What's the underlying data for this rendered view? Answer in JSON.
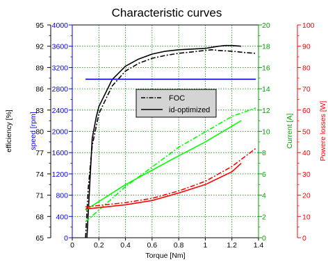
{
  "chart_data": {
    "type": "line",
    "title": "Characteristic curves",
    "xlabel": "Torque [Nm]",
    "xlim": [
      0,
      1.4
    ],
    "x_ticks": [
      "0",
      "0.2",
      "0.4",
      "0.6",
      "0.8",
      "1",
      "1.2",
      "1.4"
    ],
    "grid": true,
    "legend": {
      "position": "center",
      "entries": [
        "FOC",
        "id-optimized"
      ]
    },
    "axes": [
      {
        "id": "efficiency",
        "label": "efficiency [%]",
        "side": "left-outer",
        "range": [
          65,
          95
        ],
        "ticks": [
          "65",
          "68",
          "71",
          "74",
          "77",
          "80",
          "83",
          "86",
          "89",
          "92",
          "95"
        ],
        "color": "#000000"
      },
      {
        "id": "speed",
        "label": "speed [rpm]",
        "side": "left-inner",
        "range": [
          0,
          4000
        ],
        "ticks": [
          "0",
          "400",
          "800",
          "1200",
          "1600",
          "2000",
          "2400",
          "2800",
          "3200",
          "3600",
          "4000"
        ],
        "color": "#0000ff"
      },
      {
        "id": "current",
        "label": "Current [A]",
        "side": "right-inner",
        "range": [
          0,
          20
        ],
        "ticks": [
          "0",
          "2",
          "4",
          "6",
          "8",
          "10",
          "12",
          "14",
          "16",
          "18",
          "20"
        ],
        "color": "#00a000"
      },
      {
        "id": "losses",
        "label": "Powere losses [W]",
        "side": "right-outer",
        "range": [
          0,
          100
        ],
        "ticks": [
          "0",
          "10",
          "20",
          "30",
          "40",
          "50",
          "60",
          "70",
          "80",
          "90",
          "100"
        ],
        "color": "#ff0000"
      }
    ],
    "series": [
      {
        "name": "FOC",
        "axis": "efficiency",
        "style": "dashdot",
        "color": "#000000",
        "x": [
          0.1,
          0.12,
          0.15,
          0.2,
          0.3,
          0.4,
          0.5,
          0.6,
          0.7,
          0.8,
          0.9,
          1.0,
          1.05,
          1.1,
          1.2,
          1.3,
          1.38
        ],
        "y": [
          65,
          72,
          78,
          82.5,
          86.4,
          88.5,
          89.6,
          90.3,
          90.7,
          91.0,
          91.2,
          91.4,
          91.5,
          91.4,
          91.3,
          91.1,
          91.0
        ]
      },
      {
        "name": "id-optimized",
        "axis": "efficiency",
        "style": "solid",
        "color": "#000000",
        "x": [
          0.11,
          0.13,
          0.15,
          0.18,
          0.2,
          0.3,
          0.4,
          0.5,
          0.6,
          0.7,
          0.8,
          0.9,
          1.0,
          1.1,
          1.15,
          1.2,
          1.27
        ],
        "y": [
          65,
          72,
          79,
          82,
          83.5,
          87.3,
          89.2,
          90.2,
          90.9,
          91.3,
          91.5,
          91.6,
          91.7,
          92.0,
          92.1,
          92.1,
          92.0
        ]
      },
      {
        "name": "FOC",
        "axis": "speed",
        "style": "solid",
        "color": "#0000ff",
        "x": [
          0.1,
          1.38
        ],
        "y": [
          2980,
          2980
        ]
      },
      {
        "name": "FOC",
        "axis": "current",
        "style": "dashdot",
        "color": "#00ff00",
        "x": [
          0.1,
          0.4,
          0.8,
          1.2,
          1.38
        ],
        "y": [
          1.5,
          4.8,
          8.5,
          11.4,
          12.2
        ]
      },
      {
        "name": "id-optimized",
        "axis": "current",
        "style": "solid",
        "color": "#00ff00",
        "x": [
          0.1,
          0.4,
          0.8,
          1.0,
          1.27
        ],
        "y": [
          2.6,
          5.0,
          7.7,
          9.0,
          11.0
        ]
      },
      {
        "name": "FOC",
        "axis": "losses",
        "style": "dashdot",
        "color": "#ff0000",
        "x": [
          0.1,
          0.4,
          0.6,
          0.8,
          1.0,
          1.2,
          1.38
        ],
        "y": [
          14.5,
          16.5,
          18.5,
          22,
          26.5,
          33.5,
          42
        ]
      },
      {
        "name": "id-optimized",
        "axis": "losses",
        "style": "solid",
        "color": "#ff0000",
        "x": [
          0.1,
          0.4,
          0.6,
          0.8,
          1.0,
          1.2,
          1.27
        ],
        "y": [
          13.5,
          15.5,
          17.5,
          21,
          25,
          31,
          35
        ]
      }
    ]
  }
}
